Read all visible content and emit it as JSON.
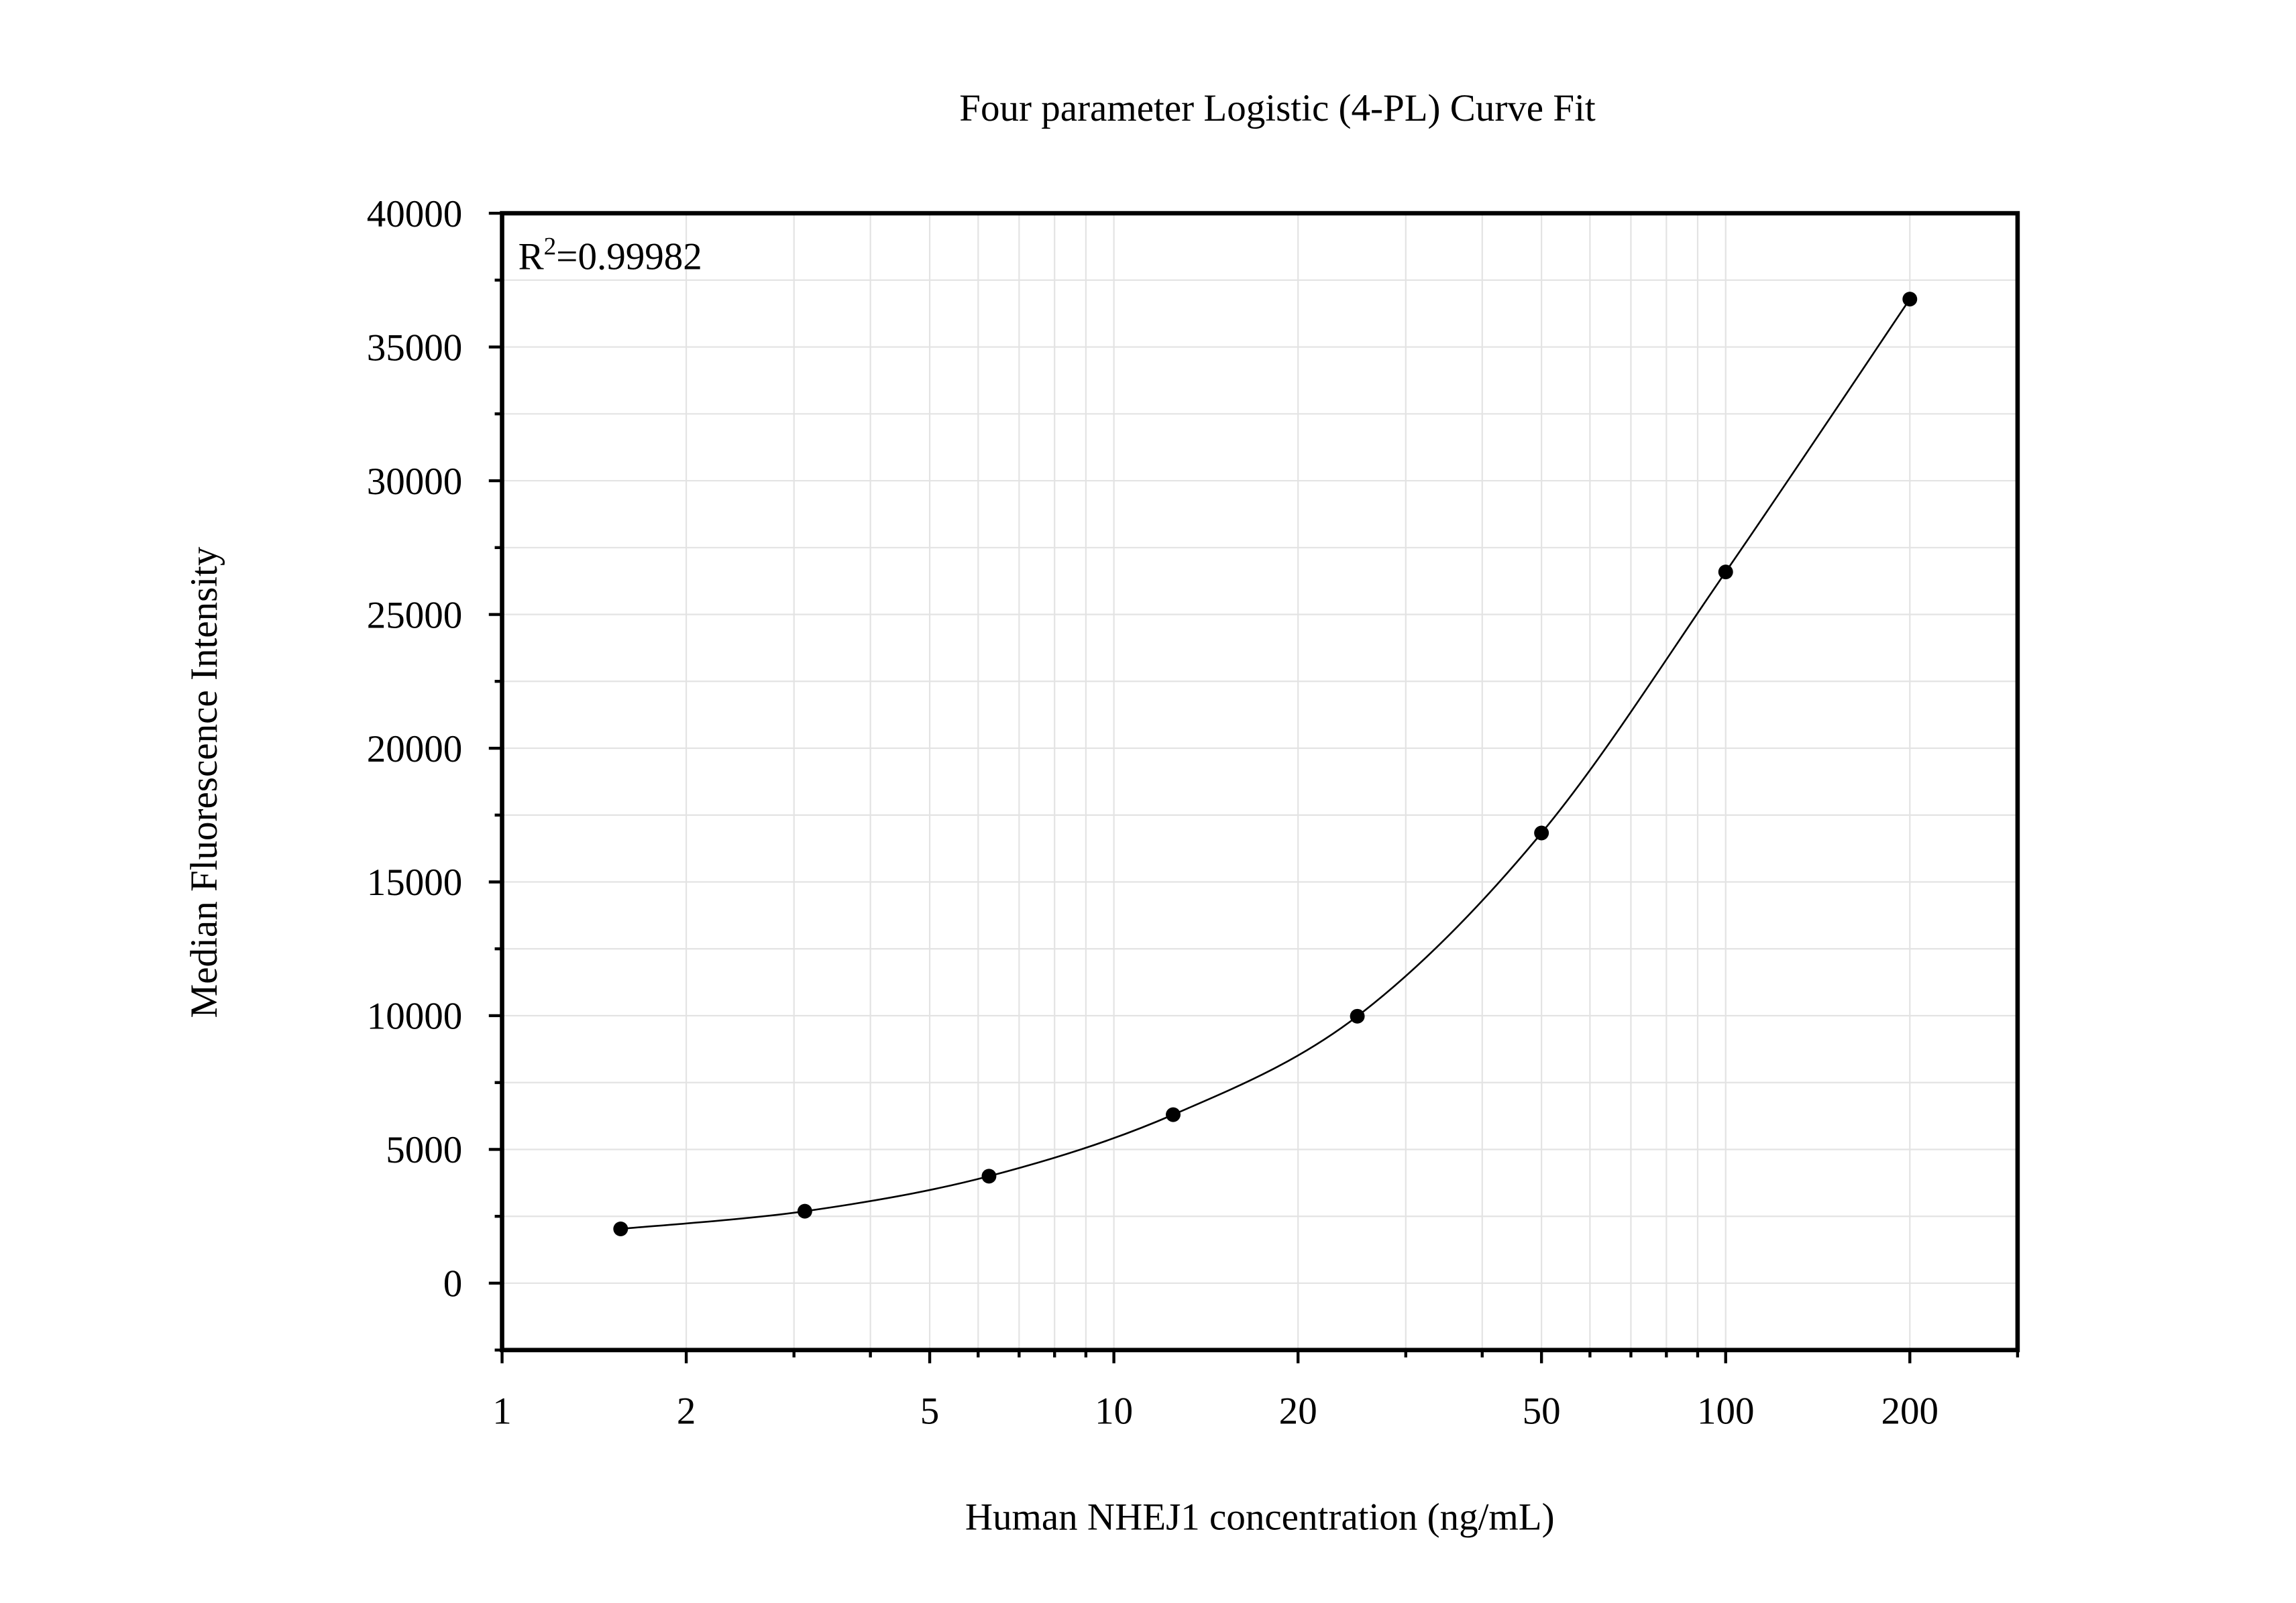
{
  "chart_data": {
    "type": "scatter",
    "title": "Four parameter Logistic (4-PL) Curve Fit",
    "xlabel": "Human NHEJ1 concentration (ng/mL)",
    "ylabel": "Median Fluorescence Intensity",
    "x_scale": "log",
    "xlim": [
      1,
      300
    ],
    "ylim": [
      -2500,
      40000
    ],
    "x_ticks": [
      1,
      2,
      5,
      10,
      20,
      50,
      100,
      200
    ],
    "x_tick_labels": [
      "1",
      "2",
      "5",
      "10",
      "20",
      "50",
      "100",
      "200"
    ],
    "y_ticks": [
      0,
      5000,
      10000,
      15000,
      20000,
      25000,
      30000,
      35000,
      40000
    ],
    "y_tick_labels": [
      "0",
      "5000",
      "10000",
      "15000",
      "20000",
      "25000",
      "30000",
      "35000",
      "40000"
    ],
    "grid": true,
    "annotation": {
      "prefix": "R",
      "superscript": "2",
      "suffix": "=0.99982"
    },
    "series": [
      {
        "x": [
          1.5625,
          3.125,
          6.25,
          12.5,
          25,
          50,
          100,
          200
        ],
        "y": [
          2030,
          2690,
          4000,
          6300,
          9980,
          16830,
          26590,
          36790
        ],
        "marker": "circle",
        "fit": "4-PL curve"
      }
    ],
    "colors": {
      "points": "#000000",
      "curve": "#000000",
      "grid": "#e3e3e3"
    }
  }
}
